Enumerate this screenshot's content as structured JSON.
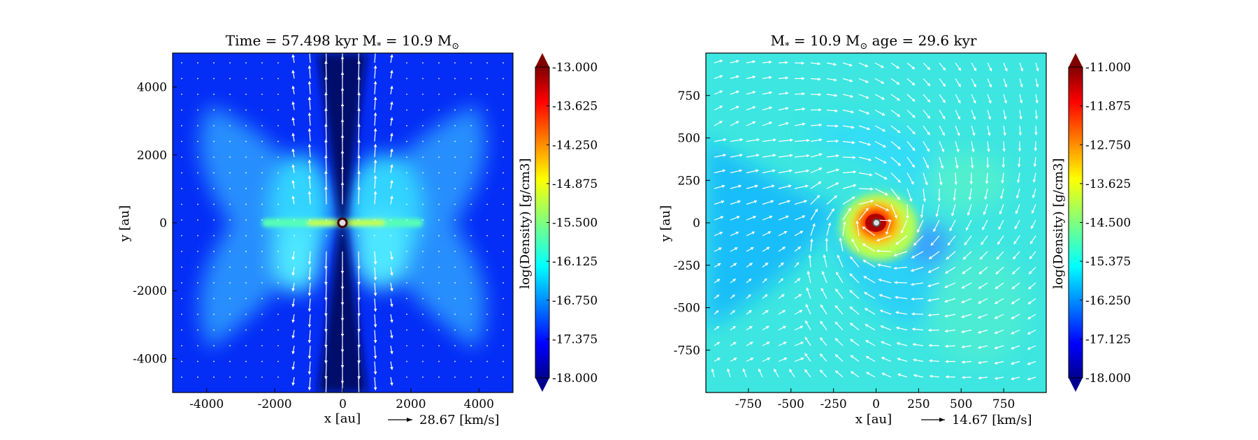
{
  "chart_data": [
    {
      "type": "heatmap",
      "title": "Time = 57.498 kyr    M$_*$ = 10.9 M$_\\odot$",
      "title_parts": {
        "left": "Time = 57.498 kyr",
        "mass_label": "M",
        "mass_sub": "*",
        "mass_eq": " = 10.9 M",
        "mass_unit_sub": "⊙"
      },
      "xlabel": "x [au]",
      "ylabel": "y [au]",
      "xlim": [
        -5000,
        5000
      ],
      "ylim": [
        -5000,
        5000
      ],
      "xticks": [
        -4000,
        -2000,
        0,
        2000,
        4000
      ],
      "yticks": [
        -4000,
        -2000,
        0,
        2000,
        4000
      ],
      "colorbar": {
        "label": "log(Density) [g/cm3]",
        "min": -18.0,
        "max": -13.0,
        "ticks": [
          "-13.000",
          "-13.625",
          "-14.250",
          "-14.875",
          "-15.500",
          "-16.125",
          "-16.750",
          "-17.375",
          "-18.000"
        ],
        "colormap": "jet",
        "extend": "both"
      },
      "vector_key": {
        "value": 28.67,
        "label": "28.67 [km/s]"
      },
      "morphology": "edge-on outflow cavity with equatorial disk; hourglass density lobes"
    },
    {
      "type": "heatmap",
      "title": "M$_*$ = 10.9 M$_\\odot$          age = 29.6 kyr",
      "title_parts": {
        "mass_label": "M",
        "mass_sub": "*",
        "mass_eq": " = 10.9 M",
        "mass_unit_sub": "⊙",
        "right": "age = 29.6 kyr"
      },
      "xlabel": "x [au]",
      "ylabel": "y [au]",
      "xlim": [
        -1000,
        1000
      ],
      "ylim": [
        -1000,
        1000
      ],
      "xticks": [
        -750,
        -500,
        -250,
        0,
        250,
        500,
        750
      ],
      "yticks": [
        750,
        500,
        250,
        0,
        -250,
        -500,
        -750
      ],
      "colorbar": {
        "label": "log(Density) [g/cm3]",
        "min": -18.0,
        "max": -11.0,
        "ticks": [
          "-11.000",
          "-11.875",
          "-12.750",
          "-13.625",
          "-14.500",
          "-15.375",
          "-16.250",
          "-17.125",
          "-18.000"
        ],
        "colormap": "jet",
        "extend": "both"
      },
      "vector_key": {
        "value": 14.67,
        "label": "14.67 [km/s]"
      },
      "morphology": "face-on disk with spiral arms; dense core at center"
    }
  ]
}
